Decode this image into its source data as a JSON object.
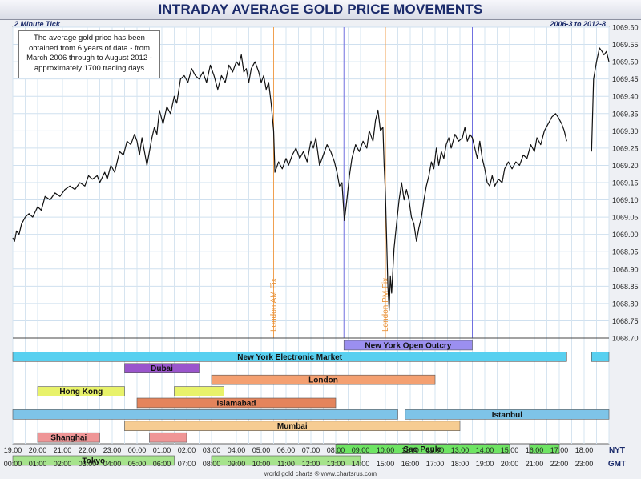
{
  "page": {
    "title": "INTRADAY AVERAGE GOLD PRICE MOVEMENTS",
    "subtitle_left": "2 Minute Tick",
    "subtitle_right": "2006-3 to 2012-8",
    "note": [
      "The average gold price has been",
      "obtained from 6 years of data - from",
      "March 2006 through to August 2012 -",
      "approximately 1700 trading days"
    ],
    "footer": "world gold charts ® www.chartsrus.com",
    "nyt_label": "NYT",
    "gmt_label": "GMT"
  },
  "chart_data": {
    "type": "line",
    "title": "INTRADAY AVERAGE GOLD PRICE MOVEMENTS",
    "x_unit": "hour of GMT day (0-24)",
    "ylim": [
      1068.7,
      1069.6
    ],
    "y_ticks": [
      "1068.70",
      "1068.75",
      "1068.80",
      "1068.85",
      "1068.90",
      "1068.95",
      "1069.00",
      "1069.05",
      "1069.10",
      "1069.15",
      "1069.20",
      "1069.25",
      "1069.30",
      "1069.35",
      "1069.40",
      "1069.45",
      "1069.50",
      "1069.55",
      "1069.60"
    ],
    "gmt_ticks": [
      "00:00",
      "01:00",
      "02:00",
      "03:00",
      "04:00",
      "05:00",
      "06:00",
      "07:00",
      "08:00",
      "09:00",
      "10:00",
      "11:00",
      "12:00",
      "13:00",
      "14:00",
      "15:00",
      "16:00",
      "17:00",
      "18:00",
      "19:00",
      "20:00",
      "21:00",
      "22:00",
      "23:00"
    ],
    "nyt_ticks": [
      "19:00",
      "20:00",
      "21:00",
      "22:00",
      "23:00",
      "00:00",
      "01:00",
      "02:00",
      "03:00",
      "04:00",
      "05:00",
      "06:00",
      "07:00",
      "08:00",
      "09:00",
      "10:00",
      "11:00",
      "12:00",
      "13:00",
      "14:00",
      "15:00",
      "16:00",
      "17:00",
      "18:00"
    ],
    "fix_lines": [
      {
        "label": "London AM Fix",
        "x": 10.5,
        "color": "#f0a050"
      },
      {
        "label": "London PM Fix",
        "x": 15.0,
        "color": "#f0a050"
      }
    ],
    "open_outcry_lines": {
      "x": [
        13.33,
        18.5
      ],
      "color": "#7070e0"
    },
    "series": [
      {
        "segments": [
          [
            [
              0.0,
              1068.99
            ],
            [
              0.07,
              1068.98
            ],
            [
              0.15,
              1069.01
            ],
            [
              0.25,
              1069.0
            ],
            [
              0.35,
              1069.03
            ],
            [
              0.5,
              1069.05
            ],
            [
              0.65,
              1069.06
            ],
            [
              0.8,
              1069.05
            ],
            [
              1.0,
              1069.08
            ],
            [
              1.15,
              1069.07
            ],
            [
              1.3,
              1069.11
            ],
            [
              1.5,
              1069.1
            ],
            [
              1.7,
              1069.12
            ],
            [
              1.9,
              1069.11
            ],
            [
              2.1,
              1069.13
            ],
            [
              2.3,
              1069.14
            ],
            [
              2.5,
              1069.13
            ],
            [
              2.7,
              1069.15
            ],
            [
              2.9,
              1069.14
            ],
            [
              3.05,
              1069.17
            ],
            [
              3.2,
              1069.16
            ],
            [
              3.4,
              1069.17
            ],
            [
              3.5,
              1069.15
            ],
            [
              3.7,
              1069.18
            ],
            [
              3.8,
              1069.16
            ],
            [
              3.95,
              1069.2
            ],
            [
              4.1,
              1069.18
            ],
            [
              4.3,
              1069.24
            ],
            [
              4.45,
              1069.23
            ],
            [
              4.6,
              1069.27
            ],
            [
              4.75,
              1069.26
            ],
            [
              4.9,
              1069.29
            ],
            [
              5.0,
              1069.27
            ],
            [
              5.1,
              1069.23
            ],
            [
              5.2,
              1069.28
            ],
            [
              5.3,
              1069.24
            ],
            [
              5.4,
              1069.2
            ],
            [
              5.5,
              1069.24
            ],
            [
              5.6,
              1069.28
            ],
            [
              5.7,
              1069.31
            ],
            [
              5.8,
              1069.29
            ],
            [
              5.9,
              1069.36
            ],
            [
              6.05,
              1069.32
            ],
            [
              6.2,
              1069.37
            ],
            [
              6.35,
              1069.35
            ],
            [
              6.5,
              1069.4
            ],
            [
              6.6,
              1069.38
            ],
            [
              6.75,
              1069.45
            ],
            [
              6.9,
              1069.46
            ],
            [
              7.05,
              1069.44
            ],
            [
              7.2,
              1069.48
            ],
            [
              7.35,
              1069.46
            ],
            [
              7.5,
              1069.45
            ],
            [
              7.65,
              1069.47
            ],
            [
              7.8,
              1069.44
            ],
            [
              7.95,
              1069.49
            ],
            [
              8.1,
              1069.46
            ],
            [
              8.25,
              1069.42
            ],
            [
              8.4,
              1069.46
            ],
            [
              8.55,
              1069.44
            ],
            [
              8.7,
              1069.49
            ],
            [
              8.85,
              1069.47
            ],
            [
              9.0,
              1069.5
            ],
            [
              9.1,
              1069.49
            ],
            [
              9.2,
              1069.52
            ],
            [
              9.3,
              1069.47
            ],
            [
              9.4,
              1069.48
            ],
            [
              9.5,
              1069.44
            ],
            [
              9.6,
              1069.48
            ],
            [
              9.75,
              1069.5
            ],
            [
              9.9,
              1069.47
            ],
            [
              10.0,
              1069.44
            ],
            [
              10.1,
              1069.46
            ],
            [
              10.2,
              1069.42
            ],
            [
              10.3,
              1069.44
            ],
            [
              10.4,
              1069.38
            ],
            [
              10.5,
              1069.3
            ],
            [
              10.55,
              1069.18
            ],
            [
              10.7,
              1069.21
            ],
            [
              10.85,
              1069.19
            ],
            [
              11.0,
              1069.22
            ],
            [
              11.1,
              1069.2
            ],
            [
              11.25,
              1069.23
            ],
            [
              11.4,
              1069.25
            ],
            [
              11.55,
              1069.22
            ],
            [
              11.7,
              1069.24
            ],
            [
              11.85,
              1069.21
            ],
            [
              12.0,
              1069.27
            ],
            [
              12.1,
              1069.25
            ],
            [
              12.2,
              1069.28
            ],
            [
              12.35,
              1069.2
            ],
            [
              12.5,
              1069.23
            ],
            [
              12.65,
              1069.26
            ],
            [
              12.8,
              1069.24
            ],
            [
              12.95,
              1069.21
            ],
            [
              13.05,
              1069.18
            ],
            [
              13.15,
              1069.14
            ],
            [
              13.25,
              1069.15
            ],
            [
              13.35,
              1069.04
            ],
            [
              13.45,
              1069.1
            ],
            [
              13.55,
              1069.17
            ],
            [
              13.65,
              1069.22
            ],
            [
              13.8,
              1069.26
            ],
            [
              13.95,
              1069.24
            ],
            [
              14.1,
              1069.27
            ],
            [
              14.25,
              1069.25
            ],
            [
              14.35,
              1069.3
            ],
            [
              14.5,
              1069.27
            ],
            [
              14.6,
              1069.33
            ],
            [
              14.7,
              1069.36
            ],
            [
              14.8,
              1069.3
            ],
            [
              14.9,
              1069.31
            ],
            [
              14.95,
              1069.2
            ],
            [
              15.0,
              1069.12
            ],
            [
              15.05,
              1068.98
            ],
            [
              15.1,
              1068.85
            ],
            [
              15.15,
              1068.78
            ],
            [
              15.2,
              1068.88
            ],
            [
              15.25,
              1068.83
            ],
            [
              15.35,
              1068.96
            ],
            [
              15.45,
              1069.03
            ],
            [
              15.55,
              1069.1
            ],
            [
              15.65,
              1069.15
            ],
            [
              15.75,
              1069.1
            ],
            [
              15.85,
              1069.13
            ],
            [
              15.95,
              1069.1
            ],
            [
              16.05,
              1069.05
            ],
            [
              16.15,
              1069.03
            ],
            [
              16.25,
              1068.98
            ],
            [
              16.35,
              1069.02
            ],
            [
              16.45,
              1069.05
            ],
            [
              16.55,
              1069.1
            ],
            [
              16.65,
              1069.14
            ],
            [
              16.75,
              1069.17
            ],
            [
              16.85,
              1069.21
            ],
            [
              16.95,
              1069.19
            ],
            [
              17.05,
              1069.25
            ],
            [
              17.15,
              1069.2
            ],
            [
              17.25,
              1069.24
            ],
            [
              17.35,
              1069.22
            ],
            [
              17.45,
              1069.26
            ],
            [
              17.55,
              1069.28
            ],
            [
              17.65,
              1069.25
            ],
            [
              17.8,
              1069.29
            ],
            [
              17.95,
              1069.27
            ],
            [
              18.1,
              1069.28
            ],
            [
              18.2,
              1069.31
            ],
            [
              18.3,
              1069.27
            ],
            [
              18.4,
              1069.29
            ],
            [
              18.5,
              1069.28
            ],
            [
              18.6,
              1069.25
            ],
            [
              18.7,
              1069.22
            ],
            [
              18.8,
              1069.27
            ],
            [
              18.9,
              1069.22
            ],
            [
              19.0,
              1069.19
            ],
            [
              19.1,
              1069.15
            ],
            [
              19.2,
              1069.14
            ],
            [
              19.3,
              1069.17
            ],
            [
              19.4,
              1069.14
            ],
            [
              19.55,
              1069.16
            ],
            [
              19.7,
              1069.15
            ],
            [
              19.8,
              1069.19
            ],
            [
              19.95,
              1069.21
            ],
            [
              20.1,
              1069.19
            ],
            [
              20.25,
              1069.21
            ],
            [
              20.4,
              1069.2
            ],
            [
              20.55,
              1069.23
            ],
            [
              20.7,
              1069.22
            ],
            [
              20.85,
              1069.26
            ],
            [
              21.0,
              1069.24
            ],
            [
              21.1,
              1069.28
            ],
            [
              21.25,
              1069.26
            ],
            [
              21.4,
              1069.3
            ],
            [
              21.55,
              1069.32
            ],
            [
              21.7,
              1069.34
            ],
            [
              21.85,
              1069.35
            ],
            [
              21.95,
              1069.34
            ],
            [
              22.1,
              1069.32
            ],
            [
              22.2,
              1069.3
            ],
            [
              22.3,
              1069.27
            ]
          ],
          [
            [
              23.3,
              1069.24
            ],
            [
              23.38,
              1069.45
            ],
            [
              23.5,
              1069.5
            ],
            [
              23.62,
              1069.54
            ],
            [
              23.72,
              1069.53
            ],
            [
              23.8,
              1069.52
            ],
            [
              23.9,
              1069.53
            ],
            [
              24.0,
              1069.5
            ]
          ]
        ]
      }
    ],
    "sessions": [
      {
        "name": "New York Open Outcry",
        "color": "#9b8ff0",
        "bars": [
          [
            13.33,
            18.5
          ]
        ]
      },
      {
        "name": "New York Electronic Market",
        "color": "#58d0f0",
        "bars": [
          [
            0,
            22.3
          ],
          [
            23.3,
            24
          ]
        ]
      },
      {
        "name": "Dubai",
        "color": "#9a55cc",
        "bars": [
          [
            4.5,
            7.5
          ]
        ]
      },
      {
        "name": "London",
        "color": "#f4a071",
        "bars": [
          [
            8.0,
            17.0
          ]
        ]
      },
      {
        "name": "Hong Kong",
        "color": "#e8f26a",
        "bars": [
          [
            1.0,
            4.5
          ],
          [
            6.5,
            8.5
          ]
        ]
      },
      {
        "name": "Islamabad",
        "color": "#e4845c",
        "bars": [
          [
            5.0,
            13.0
          ]
        ]
      },
      {
        "name": "Istanbul",
        "color": "#7ec4e8",
        "bars": [
          [
            0,
            7.7
          ],
          [
            7.7,
            15.5
          ],
          [
            15.8,
            24
          ]
        ]
      },
      {
        "name": "Mumbai",
        "color": "#f6cc92",
        "bars": [
          [
            4.5,
            18.0
          ]
        ]
      },
      {
        "name": "Shanghai",
        "color": "#ef9596",
        "bars": [
          [
            1.0,
            3.5
          ],
          [
            5.5,
            7.0
          ]
        ]
      },
      {
        "name": "Sao Paulo",
        "color": "#6ee463",
        "bars": [
          [
            13.0,
            20.0
          ],
          [
            20.8,
            22.0
          ]
        ]
      },
      {
        "name": "Tokyo",
        "color": "#a6e38c",
        "bars": [
          [
            0,
            6.5
          ],
          [
            8.0,
            14.0
          ]
        ]
      }
    ]
  }
}
